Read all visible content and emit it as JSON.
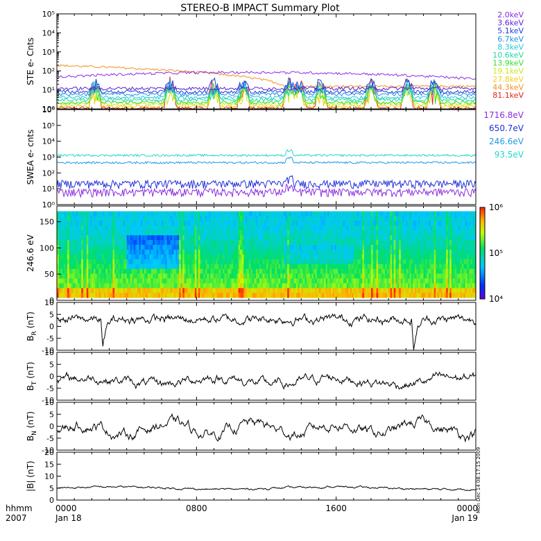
{
  "title": "STEREO-B IMPACT Summary Plot",
  "stamp": "Mon Dec 14 08:17:15 2009",
  "chart_data": [
    {
      "id": "ste",
      "type": "line",
      "ylabel": "STE e- Cnts",
      "yscale": "log",
      "ylim": [
        1,
        100000
      ],
      "yticks": [
        "10⁰",
        "10¹",
        "10²",
        "10³",
        "10⁴",
        "10⁵"
      ],
      "series": [
        {
          "name": "2.0keV",
          "color": "#8a2be2",
          "level": 60,
          "spiky": false
        },
        {
          "name": "3.6keV",
          "color": "#5a1fd1",
          "level": 12,
          "spiky": false
        },
        {
          "name": "5.1keV",
          "color": "#1f3fd9",
          "level": 8,
          "spiky": true
        },
        {
          "name": "6.7keV",
          "color": "#1e8fe6",
          "level": 6,
          "spiky": true
        },
        {
          "name": "8.3keV",
          "color": "#1ec8d8",
          "level": 4,
          "spiky": true
        },
        {
          "name": "10.6keV",
          "color": "#1ed8a0",
          "level": 3,
          "spiky": true
        },
        {
          "name": "13.9keV",
          "color": "#2ee02e",
          "level": 2.2,
          "spiky": true
        },
        {
          "name": "19.1keV",
          "color": "#c8e81e",
          "level": 1.8,
          "spiky": true
        },
        {
          "name": "27.8keV",
          "color": "#f0d010",
          "level": 1.4,
          "spiky": true
        },
        {
          "name": "44.3keV",
          "color": "#f0901e",
          "level": 40,
          "spiky": false
        },
        {
          "name": "81.1keV",
          "color": "#e62020",
          "level": 1.1,
          "spiky": true
        }
      ]
    },
    {
      "id": "swea",
      "type": "line",
      "ylabel": "SWEA e- cnts",
      "yscale": "log",
      "ylim": [
        1,
        1000000
      ],
      "yticks": [
        "10⁰",
        "10¹",
        "10²",
        "10³",
        "10⁴",
        "10⁵",
        "10⁶"
      ],
      "series": [
        {
          "name": "1716.8eV",
          "color": "#8a2be2",
          "level": 6
        },
        {
          "name": "650.7eV",
          "color": "#1f2fd9",
          "level": 20
        },
        {
          "name": "246.6eV",
          "color": "#1e9be6",
          "level": 450
        },
        {
          "name": "93.5eV",
          "color": "#1ed8c8",
          "level": 1300
        }
      ]
    },
    {
      "id": "pad",
      "type": "heatmap",
      "ylabel": "246.6 eV",
      "ylim": [
        0,
        180
      ],
      "yticks": [
        0,
        50,
        100,
        150
      ],
      "colorbar_ticks": [
        "10⁴",
        "10⁵",
        "10⁶"
      ],
      "colorbar_range": [
        10000,
        1000000
      ]
    },
    {
      "id": "br",
      "type": "line",
      "ylabel": "B",
      "ylabel_sub": "R",
      "ylabel_unit": "(nT)",
      "ylim": [
        -10,
        10
      ],
      "yticks": [
        -10,
        -5,
        0,
        5,
        10
      ],
      "mean": 3
    },
    {
      "id": "bt",
      "type": "line",
      "ylabel": "B",
      "ylabel_sub": "T",
      "ylabel_unit": "(nT)",
      "ylim": [
        -10,
        10
      ],
      "yticks": [
        -10,
        -5,
        0,
        5,
        10
      ],
      "mean": -2
    },
    {
      "id": "bn",
      "type": "line",
      "ylabel": "B",
      "ylabel_sub": "N",
      "ylabel_unit": "(nT)",
      "ylim": [
        -10,
        10
      ],
      "yticks": [
        -10,
        -5,
        0,
        5,
        10
      ],
      "mean": -1
    },
    {
      "id": "bmag",
      "type": "line",
      "ylabel": "|B|",
      "ylabel_unit": "(nT)",
      "ylim": [
        0,
        20
      ],
      "yticks": [
        0,
        5,
        10,
        15,
        20
      ],
      "mean": 5
    }
  ],
  "x_axis": {
    "left_label_top": "hhmm",
    "left_label_bottom": "2007",
    "ticks": [
      {
        "t": 0,
        "top": "0000",
        "bottom": "Jan 18"
      },
      {
        "t": 8,
        "top": "0800",
        "bottom": ""
      },
      {
        "t": 16,
        "top": "1600",
        "bottom": ""
      },
      {
        "t": 24,
        "top": "0000",
        "bottom": "Jan 19"
      }
    ],
    "xlim_hours": [
      0,
      24
    ]
  }
}
